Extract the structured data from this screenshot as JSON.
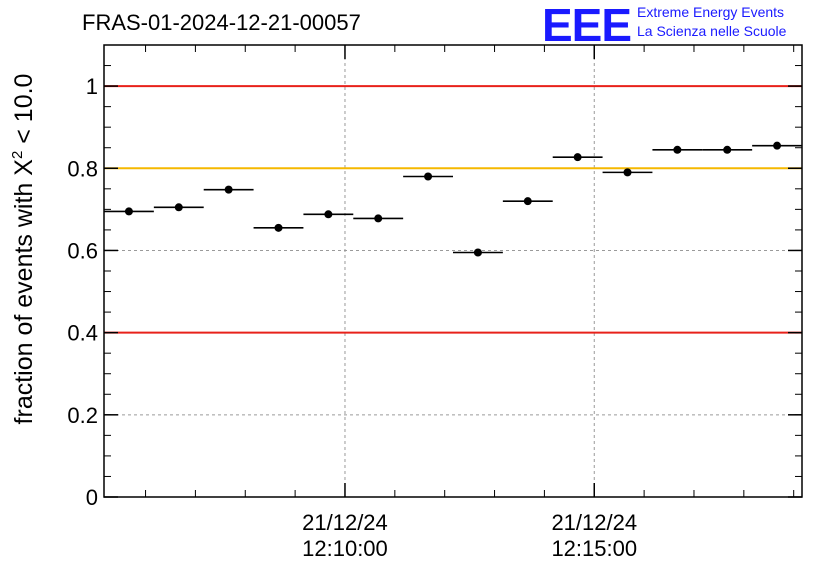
{
  "title": "FRAS-01-2024-12-21-00057",
  "logo": {
    "mark": "EEE",
    "line1": "Extreme Energy Events",
    "line2": "La Scienza nelle Scuole"
  },
  "chart_data": {
    "type": "scatter",
    "title": "FRAS-01-2024-12-21-00057",
    "ylabel_prefix": "fraction of events with ",
    "ylabel_symbol": "X",
    "ylabel_sup": "2",
    "ylabel_suffix": " < 10.0",
    "xlabel": "",
    "ylim": [
      0,
      1.1
    ],
    "yticks": [
      {
        "value": 0,
        "label": "0"
      },
      {
        "value": 0.2,
        "label": "0.2"
      },
      {
        "value": 0.4,
        "label": "0.4"
      },
      {
        "value": 0.6,
        "label": "0.6"
      },
      {
        "value": 0.8,
        "label": "0.8"
      },
      {
        "value": 1,
        "label": "1"
      }
    ],
    "xlim": [
      "12:05:10",
      "12:19:10"
    ],
    "xticks": [
      {
        "time": "12:10:00",
        "date": "21/12/24",
        "label": "12:10:00"
      },
      {
        "time": "12:15:00",
        "date": "21/12/24",
        "label": "12:15:00"
      }
    ],
    "reference_lines": [
      {
        "y": 1.0,
        "color": "#e8211a"
      },
      {
        "y": 0.8,
        "color": "#f5b800"
      },
      {
        "y": 0.4,
        "color": "#e8211a"
      }
    ],
    "grid": true,
    "marker_color": "#000000",
    "series": [
      {
        "points": [
          {
            "x_start": "12:05:10",
            "x_end": "12:06:10",
            "y": 0.695
          },
          {
            "x_start": "12:06:10",
            "x_end": "12:07:10",
            "y": 0.705
          },
          {
            "x_start": "12:07:10",
            "x_end": "12:08:10",
            "y": 0.748
          },
          {
            "x_start": "12:08:10",
            "x_end": "12:09:10",
            "y": 0.655
          },
          {
            "x_start": "12:09:10",
            "x_end": "12:10:10",
            "y": 0.688
          },
          {
            "x_start": "12:10:10",
            "x_end": "12:11:10",
            "y": 0.678
          },
          {
            "x_start": "12:11:10",
            "x_end": "12:12:10",
            "y": 0.78
          },
          {
            "x_start": "12:12:10",
            "x_end": "12:13:10",
            "y": 0.595
          },
          {
            "x_start": "12:13:10",
            "x_end": "12:14:10",
            "y": 0.72
          },
          {
            "x_start": "12:14:10",
            "x_end": "12:15:10",
            "y": 0.827
          },
          {
            "x_start": "12:15:10",
            "x_end": "12:16:10",
            "y": 0.79
          },
          {
            "x_start": "12:16:10",
            "x_end": "12:17:10",
            "y": 0.845
          },
          {
            "x_start": "12:17:10",
            "x_end": "12:18:10",
            "y": 0.845
          },
          {
            "x_start": "12:18:10",
            "x_end": "12:19:10",
            "y": 0.855
          }
        ]
      }
    ]
  }
}
